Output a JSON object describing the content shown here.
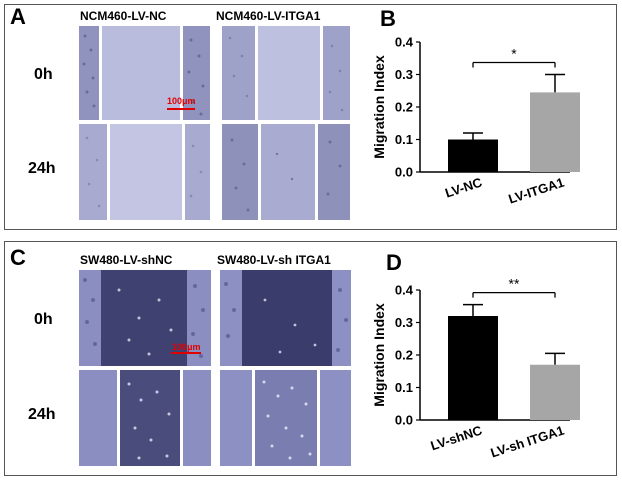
{
  "panels": {
    "A": {
      "letter": "A",
      "col_titles": [
        "NCM460-LV-NC",
        "NCM460-LV-ITGA1"
      ],
      "row_labels": [
        "0h",
        "24h"
      ],
      "scale_bar_label": "100μm"
    },
    "C": {
      "letter": "C",
      "col_titles": [
        "SW480-LV-shNC",
        "SW480-LV-sh ITGA1"
      ],
      "row_labels": [
        "0h",
        "24h"
      ],
      "scale_bar_label": "100μm"
    },
    "B": {
      "letter": "B"
    },
    "D": {
      "letter": "D"
    }
  },
  "colors": {
    "micrograph_A_bg": "#9a9ec6",
    "micrograph_A_gap": "#b9bcdc",
    "micrograph_C_bg": "#9497c4",
    "micrograph_C_gap": "#3e3f6e",
    "bar_dark": "#000000",
    "bar_gray": "#a6a6a6",
    "scale_bar": "#e00000"
  },
  "chart_data": [
    {
      "panel": "B",
      "type": "bar",
      "categories": [
        "LV-NC",
        "LV-ITGA1"
      ],
      "values": [
        0.1,
        0.245
      ],
      "errors": [
        0.02,
        0.055
      ],
      "colors": [
        "#000000",
        "#a6a6a6"
      ],
      "ylabel": "Migration Index",
      "ylim": [
        0.0,
        0.4
      ],
      "yticks": [
        "0.0",
        "0.1",
        "0.2",
        "0.3",
        "0.4"
      ],
      "significance": "*"
    },
    {
      "panel": "D",
      "type": "bar",
      "categories": [
        "LV-shNC",
        "LV-sh ITGA1"
      ],
      "values": [
        0.32,
        0.17
      ],
      "errors": [
        0.035,
        0.035
      ],
      "colors": [
        "#000000",
        "#a6a6a6"
      ],
      "ylabel": "Migration Index",
      "ylim": [
        0.0,
        0.4
      ],
      "yticks": [
        "0.0",
        "0.1",
        "0.2",
        "0.3",
        "0.4"
      ],
      "significance": "**"
    }
  ]
}
